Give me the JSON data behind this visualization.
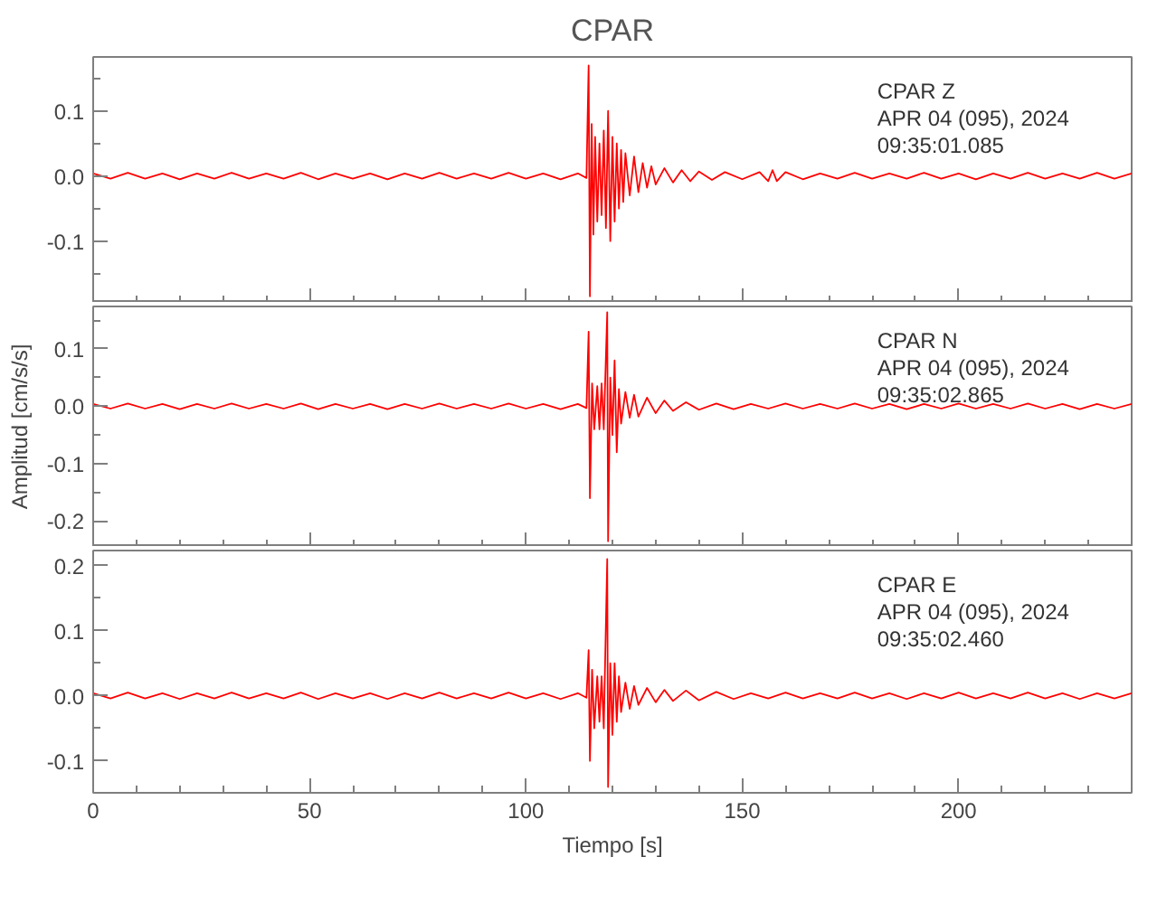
{
  "chart_data": [
    {
      "type": "line",
      "title": "CPAR",
      "xlim": [
        0,
        240
      ],
      "ylim": [
        -0.195,
        0.183
      ],
      "xticks": [
        0,
        50,
        100,
        150,
        200
      ],
      "yticks": [
        {
          "value": -0.1,
          "label": "-0.1"
        },
        {
          "value": 0,
          "label": "0.0"
        },
        {
          "value": 0.1,
          "label": "0.1"
        }
      ],
      "tick_labels": "y",
      "grid": false,
      "marker": "none",
      "line_style": "solid",
      "annotations": [
        "CPAR   Z",
        "APR 04 (095), 2024",
        "09:35:01.085"
      ],
      "series": [
        {
          "color": "#ff0000",
          "x": [
            0,
            4,
            8,
            12,
            16,
            20,
            24,
            28,
            32,
            36,
            40,
            44,
            48,
            52,
            56,
            60,
            64,
            68,
            72,
            76,
            80,
            84,
            88,
            92,
            96,
            100,
            104,
            108,
            112,
            114,
            114.5,
            114.8,
            115.2,
            115.6,
            116,
            116.5,
            117,
            117.5,
            118,
            118.5,
            119,
            119.5,
            120,
            120.5,
            121,
            121.5,
            122,
            122.5,
            123,
            124,
            125,
            126,
            127,
            128,
            129,
            130,
            132,
            134,
            136,
            138,
            140,
            143,
            146,
            150,
            154,
            156,
            157,
            158,
            160,
            164,
            168,
            172,
            176,
            180,
            184,
            188,
            192,
            196,
            200,
            204,
            208,
            212,
            216,
            220,
            224,
            228,
            232,
            236,
            240
          ],
          "values": [
            0.004,
            -0.004,
            0.005,
            -0.004,
            0.004,
            -0.005,
            0.004,
            -0.004,
            0.005,
            -0.004,
            0.004,
            -0.004,
            0.005,
            -0.005,
            0.004,
            -0.004,
            0.004,
            -0.005,
            0.004,
            -0.004,
            0.005,
            -0.004,
            0.004,
            -0.004,
            0.005,
            -0.004,
            0.004,
            -0.005,
            0.004,
            -0.003,
            0.17,
            -0.185,
            0.08,
            -0.09,
            0.06,
            -0.07,
            0.05,
            -0.06,
            0.07,
            -0.08,
            0.1,
            -0.1,
            0.06,
            -0.07,
            0.05,
            -0.05,
            0.04,
            -0.04,
            0.035,
            -0.03,
            0.03,
            -0.025,
            0.02,
            -0.018,
            0.015,
            -0.013,
            0.012,
            -0.01,
            0.009,
            -0.008,
            0.007,
            -0.006,
            0.006,
            -0.005,
            0.006,
            -0.008,
            0.009,
            -0.008,
            0.006,
            -0.005,
            0.004,
            -0.004,
            0.005,
            -0.004,
            0.004,
            -0.004,
            0.005,
            -0.004,
            0.004,
            -0.005,
            0.004,
            -0.004,
            0.005,
            -0.004,
            0.004,
            -0.004,
            0.005,
            -0.004,
            0.004
          ]
        }
      ]
    },
    {
      "type": "line",
      "ylabel": "Amplitud [cm/s/s]",
      "xlim": [
        0,
        240
      ],
      "ylim": [
        -0.245,
        0.174
      ],
      "xticks": [
        0,
        50,
        100,
        150,
        200
      ],
      "yticks": [
        {
          "value": -0.2,
          "label": "-0.2"
        },
        {
          "value": -0.1,
          "label": "-0.1"
        },
        {
          "value": 0,
          "label": "0.0"
        },
        {
          "value": 0.1,
          "label": "0.1"
        }
      ],
      "tick_labels": "y",
      "grid": false,
      "marker": "none",
      "line_style": "solid",
      "annotations": [
        "CPAR   N",
        "APR 04 (095), 2024",
        "09:35:02.865"
      ],
      "series": [
        {
          "color": "#ff0000",
          "x": [
            0,
            4,
            8,
            12,
            16,
            20,
            24,
            28,
            32,
            36,
            40,
            44,
            48,
            52,
            56,
            60,
            64,
            68,
            72,
            76,
            80,
            84,
            88,
            92,
            96,
            100,
            104,
            108,
            112,
            114,
            114.5,
            114.8,
            115.3,
            115.8,
            116.5,
            117,
            117.5,
            118,
            118.8,
            119,
            119.5,
            120,
            120.5,
            121,
            121.5,
            122,
            123,
            124,
            125,
            126,
            128,
            130,
            132,
            134,
            137,
            140,
            144,
            148,
            152,
            156,
            160,
            164,
            168,
            172,
            176,
            180,
            184,
            188,
            192,
            196,
            200,
            204,
            208,
            212,
            216,
            220,
            224,
            228,
            232,
            236,
            240
          ],
          "values": [
            0.004,
            -0.004,
            0.005,
            -0.004,
            0.004,
            -0.005,
            0.004,
            -0.004,
            0.005,
            -0.004,
            0.004,
            -0.004,
            0.005,
            -0.005,
            0.004,
            -0.004,
            0.004,
            -0.005,
            0.004,
            -0.004,
            0.005,
            -0.004,
            0.004,
            -0.004,
            0.005,
            -0.004,
            0.004,
            -0.005,
            0.004,
            -0.003,
            0.13,
            -0.16,
            0.04,
            -0.04,
            0.035,
            -0.04,
            0.04,
            -0.04,
            0.164,
            -0.235,
            0.05,
            -0.05,
            0.08,
            -0.08,
            0.03,
            -0.03,
            0.025,
            -0.02,
            0.02,
            -0.018,
            0.015,
            -0.012,
            0.01,
            -0.008,
            0.007,
            -0.006,
            0.005,
            -0.005,
            0.004,
            -0.004,
            0.005,
            -0.004,
            0.004,
            -0.004,
            0.005,
            -0.004,
            0.004,
            -0.005,
            0.004,
            -0.004,
            0.005,
            -0.004,
            0.004,
            -0.004,
            0.005,
            -0.004,
            0.004,
            -0.005,
            0.004,
            -0.004,
            0.004
          ]
        }
      ]
    },
    {
      "type": "line",
      "xlabel": "Tiempo [s]",
      "xlim": [
        0,
        240
      ],
      "ylim": [
        -0.149,
        0.223
      ],
      "xticks": [
        0,
        50,
        100,
        150,
        200
      ],
      "yticks": [
        {
          "value": -0.1,
          "label": "-0.1"
        },
        {
          "value": 0,
          "label": "0.0"
        },
        {
          "value": 0.1,
          "label": "0.1"
        },
        {
          "value": 0.2,
          "label": "0.2"
        }
      ],
      "grid": false,
      "marker": "none",
      "line_style": "solid",
      "annotations": [
        "CPAR   E",
        "APR 04 (095), 2024",
        "09:35:02.460"
      ],
      "series": [
        {
          "color": "#ff0000",
          "x": [
            0,
            4,
            8,
            12,
            16,
            20,
            24,
            28,
            32,
            36,
            40,
            44,
            48,
            52,
            56,
            60,
            64,
            68,
            72,
            76,
            80,
            84,
            88,
            92,
            96,
            100,
            104,
            108,
            112,
            114,
            114.5,
            114.8,
            115.3,
            115.8,
            116.5,
            117,
            117.5,
            118,
            118.8,
            119,
            119.5,
            120,
            120.5,
            121,
            121.5,
            122,
            123,
            124,
            125,
            126,
            128,
            130,
            132,
            134,
            137,
            140,
            144,
            148,
            152,
            156,
            160,
            164,
            168,
            172,
            176,
            180,
            184,
            188,
            192,
            196,
            200,
            204,
            208,
            212,
            216,
            220,
            224,
            228,
            232,
            236,
            240
          ],
          "values": [
            0.004,
            -0.004,
            0.005,
            -0.004,
            0.004,
            -0.005,
            0.004,
            -0.004,
            0.005,
            -0.004,
            0.004,
            -0.004,
            0.005,
            -0.005,
            0.004,
            -0.004,
            0.004,
            -0.005,
            0.004,
            -0.004,
            0.005,
            -0.004,
            0.004,
            -0.004,
            0.005,
            -0.004,
            0.004,
            -0.005,
            0.004,
            -0.003,
            0.07,
            -0.1,
            0.04,
            -0.05,
            0.03,
            -0.04,
            0.03,
            -0.05,
            0.21,
            -0.14,
            0.05,
            -0.06,
            0.05,
            -0.04,
            0.03,
            -0.025,
            0.02,
            -0.02,
            0.015,
            -0.014,
            0.012,
            -0.01,
            0.009,
            -0.008,
            0.008,
            -0.007,
            0.006,
            -0.005,
            0.004,
            -0.004,
            0.005,
            -0.004,
            0.004,
            -0.004,
            0.005,
            -0.004,
            0.004,
            -0.005,
            0.004,
            -0.004,
            0.005,
            -0.004,
            0.004,
            -0.004,
            0.005,
            -0.004,
            0.004,
            -0.005,
            0.004,
            -0.004,
            0.004
          ]
        }
      ]
    }
  ]
}
